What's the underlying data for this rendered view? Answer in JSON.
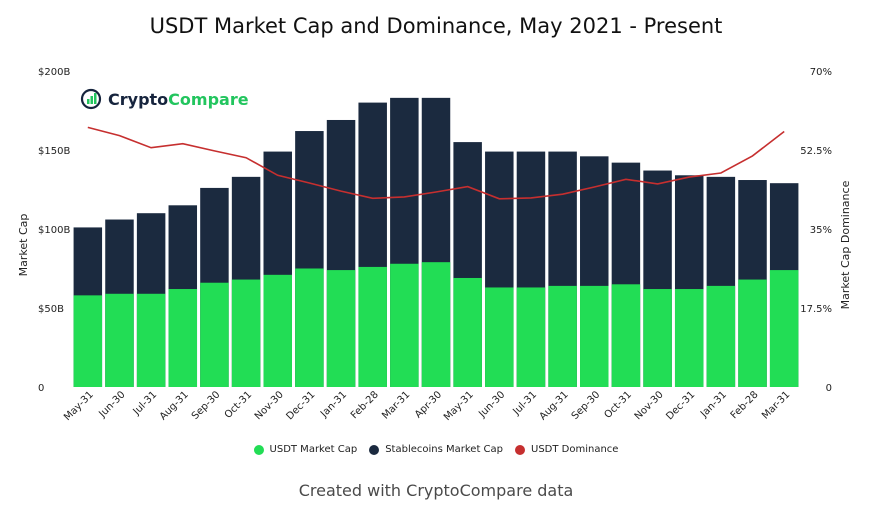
{
  "title": "USDT Market Cap and Dominance, May 2021 - Present",
  "footer": "Created with CryptoCompare data",
  "logo": {
    "part1": "Crypto",
    "part2": "Compare"
  },
  "colors": {
    "usdt": "#22dd55",
    "stable": "#1b2a3f",
    "dominance": "#c62f2f"
  },
  "chart_data": {
    "type": "bar",
    "categories": [
      "May-31",
      "Jun-30",
      "Jul-31",
      "Aug-31",
      "Sep-30",
      "Oct-31",
      "Nov-30",
      "Dec-31",
      "Jan-31",
      "Feb-28",
      "Mar-31",
      "Apr-30",
      "May-31",
      "Jun-30",
      "Jul-31",
      "Aug-31",
      "Sep-30",
      "Oct-31",
      "Nov-30",
      "Dec-31",
      "Jan-31",
      "Feb-28",
      "Mar-31"
    ],
    "series": [
      {
        "name": "USDT Market Cap",
        "kind": "bar",
        "axis": "left",
        "values": [
          58,
          59,
          59,
          62,
          66,
          68,
          71,
          75,
          74,
          76,
          78,
          79,
          69,
          63,
          63,
          64,
          64,
          65,
          62,
          62,
          64,
          68,
          74
        ]
      },
      {
        "name": "Stablecoins Market Cap",
        "kind": "bar",
        "axis": "left",
        "values": [
          101,
          106,
          110,
          115,
          126,
          133,
          149,
          162,
          169,
          180,
          183,
          183,
          155,
          149,
          149,
          149,
          146,
          142,
          137,
          134,
          133,
          131,
          129
        ]
      },
      {
        "name": "USDT Dominance",
        "kind": "line",
        "axis": "right",
        "values": [
          57.5,
          55.7,
          53,
          53.9,
          52.3,
          50.8,
          46.9,
          45.2,
          43.4,
          41.8,
          42.1,
          43.2,
          44.4,
          41.7,
          41.9,
          42.7,
          44.3,
          46,
          45,
          46.5,
          47.4,
          51.2,
          56.6
        ]
      }
    ],
    "ylabel": "Market Cap",
    "y2label": "Market Cap Dominance",
    "ylim": [
      0,
      200
    ],
    "y2lim": [
      0,
      70
    ],
    "yticks": [
      "0",
      "$50B",
      "$100B",
      "$150B",
      "$200B"
    ],
    "y2ticks": [
      "0",
      "17.5%",
      "35%",
      "52.5%",
      "70%"
    ],
    "legend_position": "bottom"
  }
}
